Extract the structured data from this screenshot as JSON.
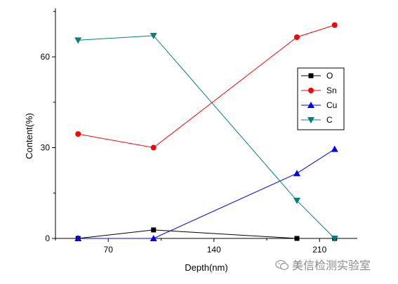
{
  "chart_data": {
    "type": "line",
    "xlabel": "Depth(nm)",
    "ylabel": "Content(%)",
    "x": [
      50,
      100,
      195,
      220
    ],
    "xlim": [
      35,
      235
    ],
    "ylim": [
      0,
      76
    ],
    "xticks": [
      70,
      140,
      210
    ],
    "yticks": [
      0,
      30,
      60
    ],
    "grid": false,
    "legend_position": "right",
    "series": [
      {
        "name": "O",
        "marker": "square",
        "color": "#000000",
        "values": [
          0,
          2.8,
          0,
          0
        ]
      },
      {
        "name": "Sn",
        "marker": "circle",
        "color": "#ff0000",
        "values": [
          34.5,
          30,
          66.5,
          70.5
        ]
      },
      {
        "name": "Cu",
        "marker": "triangle-up",
        "color": "#0000ff",
        "values": [
          0,
          0,
          21.5,
          29.5
        ]
      },
      {
        "name": "C",
        "marker": "triangle-down",
        "color": "#008080",
        "values": [
          65.5,
          67,
          12.5,
          0
        ]
      }
    ]
  },
  "watermark": {
    "text": "美信检测实验室",
    "icon": "wechat-icon"
  }
}
